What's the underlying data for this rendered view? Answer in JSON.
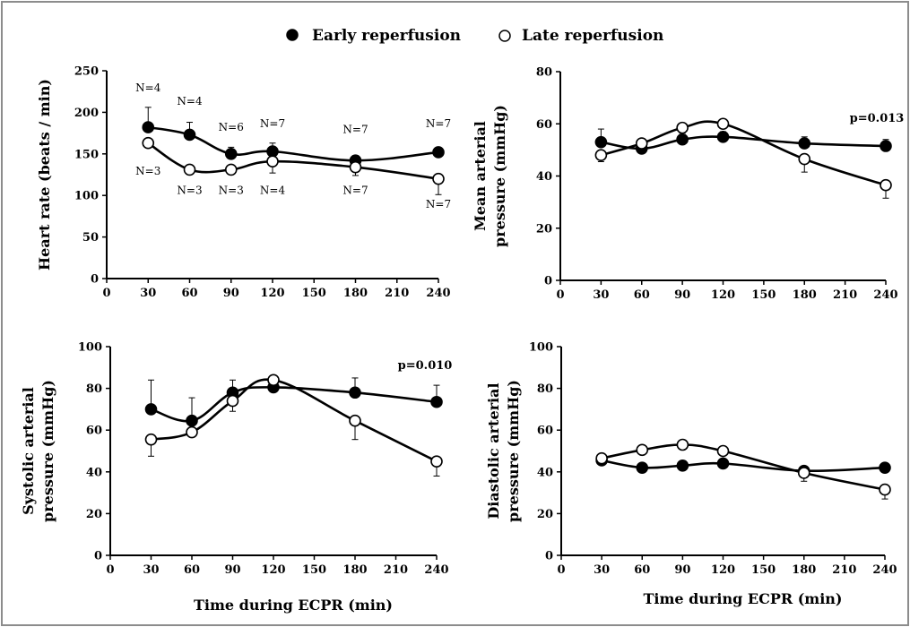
{
  "legend": {
    "early_label": "Early reperfusion",
    "late_label": "Late reperfusion"
  },
  "chart_data": [
    {
      "type": "line",
      "panel": "top-left",
      "ylabel_lines": [
        "Heart rate (beats / min)"
      ],
      "xlabel": "",
      "xlim": [
        0,
        240
      ],
      "ylim": [
        0,
        250
      ],
      "xticks": [
        0,
        30,
        60,
        90,
        120,
        150,
        180,
        210,
        240
      ],
      "yticks": [
        0,
        50,
        100,
        150,
        200,
        250
      ],
      "x": [
        30,
        60,
        90,
        120,
        180,
        240
      ],
      "series": [
        {
          "name": "Early reperfusion",
          "marker": "filled",
          "values": [
            182,
            173,
            150,
            153,
            142,
            152
          ],
          "error": [
            24,
            15,
            8,
            10,
            6,
            5
          ]
        },
        {
          "name": "Late reperfusion",
          "marker": "open",
          "values": [
            163,
            131,
            131,
            141,
            134,
            120
          ],
          "error": [
            5,
            5,
            5,
            14,
            10,
            19
          ]
        }
      ],
      "n_labels": [
        {
          "text": "N=4",
          "at": [
            30,
            225
          ]
        },
        {
          "text": "N=4",
          "at": [
            60,
            209
          ]
        },
        {
          "text": "N=6",
          "at": [
            90,
            178
          ]
        },
        {
          "text": "N=7",
          "at": [
            120,
            182
          ]
        },
        {
          "text": "N=7",
          "at": [
            180,
            175
          ]
        },
        {
          "text": "N=7",
          "at": [
            240,
            182
          ]
        },
        {
          "text": "N=3",
          "at": [
            30,
            125
          ]
        },
        {
          "text": "N=3",
          "at": [
            60,
            102
          ]
        },
        {
          "text": "N=3",
          "at": [
            90,
            102
          ]
        },
        {
          "text": "N=4",
          "at": [
            120,
            102
          ]
        },
        {
          "text": "N=7",
          "at": [
            180,
            102
          ]
        },
        {
          "text": "N=7",
          "at": [
            240,
            85
          ]
        }
      ],
      "annotation": ""
    },
    {
      "type": "line",
      "panel": "top-right",
      "ylabel_lines": [
        "Mean arterial",
        "pressure (mmHg)"
      ],
      "xlabel": "",
      "xlim": [
        0,
        240
      ],
      "ylim": [
        0,
        80
      ],
      "xticks": [
        0,
        30,
        60,
        90,
        120,
        150,
        180,
        210,
        240
      ],
      "yticks": [
        0,
        20,
        40,
        60,
        80
      ],
      "x": [
        30,
        60,
        90,
        120,
        180,
        240
      ],
      "series": [
        {
          "name": "Early reperfusion",
          "marker": "filled",
          "values": [
            53,
            50.5,
            54,
            55,
            52.5,
            51.5
          ],
          "error": [
            5,
            2,
            2,
            2,
            2.5,
            2.5
          ]
        },
        {
          "name": "Late reperfusion",
          "marker": "open",
          "values": [
            48,
            52.5,
            58.5,
            60,
            46.5,
            36.5
          ],
          "error": [
            2.5,
            2,
            2,
            1.5,
            5,
            5
          ]
        }
      ],
      "n_labels": [],
      "annotation": "p=0.013"
    },
    {
      "type": "line",
      "panel": "bottom-left",
      "ylabel_lines": [
        "Systolic arterial",
        "pressure (mmHg)"
      ],
      "xlabel": "Time during ECPR (min)",
      "xlim": [
        0,
        240
      ],
      "ylim": [
        0,
        100
      ],
      "xticks": [
        0,
        30,
        60,
        90,
        120,
        150,
        180,
        210,
        240
      ],
      "yticks": [
        0,
        20,
        40,
        60,
        80,
        100
      ],
      "x": [
        30,
        60,
        90,
        120,
        180,
        240
      ],
      "series": [
        {
          "name": "Early reperfusion",
          "marker": "filled",
          "values": [
            70,
            64.5,
            78,
            80.5,
            78,
            73.5
          ],
          "error": [
            14,
            11,
            6,
            5,
            7,
            8
          ]
        },
        {
          "name": "Late reperfusion",
          "marker": "open",
          "values": [
            55.5,
            59,
            74,
            84,
            64.5,
            45
          ],
          "error": [
            8,
            2,
            5,
            2,
            9,
            7
          ]
        }
      ],
      "n_labels": [],
      "annotation": "p=0.010"
    },
    {
      "type": "line",
      "panel": "bottom-right",
      "ylabel_lines": [
        "Diastolic arterial",
        "pressure (mmHg)"
      ],
      "xlabel": "Time during ECPR (min)",
      "xlim": [
        0,
        240
      ],
      "ylim": [
        0,
        100
      ],
      "xticks": [
        0,
        30,
        60,
        90,
        120,
        150,
        180,
        210,
        240
      ],
      "yticks": [
        0,
        20,
        40,
        60,
        80,
        100
      ],
      "x": [
        30,
        60,
        90,
        120,
        180,
        240
      ],
      "series": [
        {
          "name": "Early reperfusion",
          "marker": "filled",
          "values": [
            45.5,
            42,
            43,
            44,
            40.5,
            42
          ],
          "error": [
            1.5,
            1.5,
            1.5,
            1.5,
            1.5,
            1.5
          ]
        },
        {
          "name": "Late reperfusion",
          "marker": "open",
          "values": [
            46.5,
            50.5,
            53,
            50,
            39.5,
            31.5
          ],
          "error": [
            1.5,
            1.5,
            1.5,
            1.5,
            4,
            4.5
          ]
        }
      ],
      "n_labels": [],
      "annotation": ""
    }
  ]
}
